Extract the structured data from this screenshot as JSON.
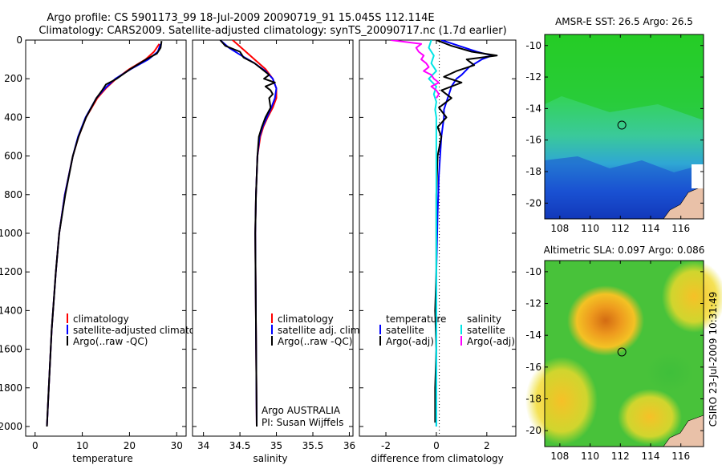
{
  "figure": {
    "title_line1": "Argo profile: CS 5901173_99 18-Jul-2009 20090719_91 15.045S 112.114E",
    "title_line2": "Climatology: CARS2009. Satellite-adjusted climatology: synTS_20090717.nc (1.7d earlier)",
    "side_caption": "CSIRO 23-Jul-2009 10:31:49"
  },
  "chart_data": [
    {
      "type": "line",
      "id": "temperature",
      "xlabel": "temperature",
      "ylabel": "",
      "xlim": [
        -2,
        32
      ],
      "ylim": [
        2050,
        0
      ],
      "xticks": [
        0,
        10,
        20,
        30
      ],
      "yticks": [
        0,
        200,
        400,
        600,
        800,
        1000,
        1200,
        1400,
        1600,
        1800,
        2000
      ],
      "legend": [
        "climatology",
        "satellite-adjusted climatology",
        "Argo(..raw -QC)"
      ],
      "series": [
        {
          "name": "climatology",
          "color": "#ff0000",
          "depth": [
            20,
            60,
            100,
            150,
            200,
            250,
            300,
            400,
            500,
            600,
            800,
            1000,
            1200,
            1500,
            1800,
            2000
          ],
          "values": [
            26.3,
            25.2,
            23.4,
            20.0,
            17.2,
            15.0,
            13.2,
            10.8,
            9.2,
            8.0,
            6.3,
            5.1,
            4.4,
            3.5,
            2.9,
            2.5
          ]
        },
        {
          "name": "satellite-adjusted climatology",
          "color": "#0000ff",
          "depth": [
            20,
            60,
            100,
            150,
            200,
            250,
            300,
            400,
            500,
            600,
            800,
            1000,
            1200,
            1500,
            1800,
            2000
          ],
          "values": [
            26.6,
            26.0,
            24.0,
            20.3,
            17.0,
            14.8,
            13.0,
            10.7,
            9.1,
            8.0,
            6.3,
            5.1,
            4.4,
            3.5,
            2.9,
            2.5
          ]
        },
        {
          "name": "Argo(..raw -QC)",
          "color": "#000000",
          "depth": [
            5,
            40,
            70,
            100,
            150,
            200,
            230,
            260,
            300,
            400,
            500,
            600,
            800,
            1000,
            1200,
            1500,
            1800,
            2000
          ],
          "values": [
            26.8,
            26.6,
            25.8,
            23.5,
            20.2,
            17.3,
            15.0,
            14.2,
            13.0,
            10.8,
            9.2,
            8.0,
            6.4,
            5.1,
            4.4,
            3.5,
            2.9,
            2.5
          ]
        }
      ]
    },
    {
      "type": "line",
      "id": "salinity",
      "xlabel": "salinity",
      "xlim": [
        33.85,
        36.05
      ],
      "ylim": [
        2050,
        0
      ],
      "xticks": [
        34,
        34.5,
        35,
        35.5,
        36
      ],
      "legend": [
        "climatology",
        "satellite adj. clim.",
        "Argo(..raw -QC)"
      ],
      "annotation": [
        "Argo AUSTRALIA",
        "PI: Susan Wijffels"
      ],
      "series": [
        {
          "name": "climatology",
          "color": "#ff0000",
          "depth": [
            0,
            50,
            100,
            150,
            200,
            250,
            300,
            350,
            400,
            450,
            500,
            600,
            800,
            1000,
            1500,
            2000
          ],
          "values": [
            34.4,
            34.55,
            34.7,
            34.85,
            34.95,
            35.0,
            35.0,
            34.95,
            34.88,
            34.82,
            34.78,
            34.74,
            34.72,
            34.71,
            34.72,
            34.73
          ]
        },
        {
          "name": "satellite adj. clim.",
          "color": "#0000ff",
          "depth": [
            0,
            40,
            80,
            120,
            160,
            200,
            250,
            300,
            350,
            400,
            450,
            500,
            600,
            800,
            1000,
            1500,
            2000
          ],
          "values": [
            34.23,
            34.35,
            34.52,
            34.7,
            34.85,
            34.95,
            35.0,
            34.98,
            34.93,
            34.87,
            34.81,
            34.77,
            34.74,
            34.72,
            34.71,
            34.72,
            34.73
          ]
        },
        {
          "name": "Argo(..raw -QC)",
          "color": "#000000",
          "depth": [
            0,
            30,
            60,
            90,
            120,
            150,
            180,
            200,
            220,
            240,
            260,
            280,
            300,
            350,
            400,
            450,
            500,
            600,
            800,
            1000,
            1500,
            2000
          ],
          "values": [
            34.23,
            34.3,
            34.5,
            34.55,
            34.7,
            34.8,
            34.9,
            34.83,
            34.98,
            34.85,
            34.92,
            34.95,
            34.9,
            34.92,
            34.85,
            34.8,
            34.76,
            34.74,
            34.72,
            34.71,
            34.72,
            34.73
          ]
        }
      ]
    },
    {
      "type": "line",
      "id": "difference",
      "xlabel": "difference from climatology",
      "xlim": [
        -3.05,
        3.15
      ],
      "ylim": [
        2050,
        0
      ],
      "xticks": [
        -2,
        0,
        2
      ],
      "legend_left_title": "temperature",
      "legend_right_title": "salinity",
      "legend_left": [
        "satellite",
        "Argo(-adj)"
      ],
      "legend_right": [
        "satellite",
        "Argo(-adj)"
      ],
      "series": [
        {
          "name": "temperature satellite",
          "color": "#0000ff",
          "depth": [
            0,
            30,
            60,
            80,
            100,
            140,
            180,
            200,
            240,
            280,
            320,
            360,
            400,
            450,
            500,
            700,
            900,
            1200,
            1500,
            1800,
            2000
          ],
          "values": [
            0.2,
            0.9,
            1.6,
            2.2,
            1.8,
            1.3,
            1.0,
            0.8,
            0.6,
            0.5,
            0.4,
            0.3,
            0.3,
            0.25,
            0.2,
            0.1,
            0.05,
            0.0,
            0.0,
            0.0,
            0.0
          ]
        },
        {
          "name": "temperature Argo(-adj)",
          "color": "#000000",
          "depth": [
            0,
            30,
            60,
            80,
            100,
            130,
            160,
            190,
            220,
            260,
            300,
            350,
            400,
            450,
            500,
            600,
            800,
            1000,
            1200,
            1400,
            1600,
            1800,
            1980
          ],
          "values": [
            0.0,
            0.6,
            1.4,
            2.4,
            1.2,
            1.5,
            0.8,
            0.3,
            1.0,
            0.2,
            0.6,
            0.1,
            0.4,
            0.05,
            0.2,
            0.05,
            0.0,
            0.0,
            0.0,
            -0.05,
            0.0,
            -0.05,
            -0.05
          ]
        },
        {
          "name": "salinity satellite",
          "color": "#00e5e5",
          "depth": [
            0,
            40,
            80,
            120,
            160,
            200,
            240,
            280,
            320,
            360,
            400,
            500,
            600,
            800,
            1000,
            1500,
            2000
          ],
          "values": [
            -0.2,
            -0.3,
            -0.1,
            -0.2,
            0.0,
            -0.3,
            0.0,
            -0.1,
            0.0,
            -0.05,
            0.0,
            0.0,
            0.0,
            0.0,
            0.0,
            0.0,
            0.0
          ]
        },
        {
          "name": "salinity Argo(-adj)",
          "color": "#ff00ff",
          "depth": [
            0,
            20,
            40,
            60,
            80,
            100,
            120,
            140,
            160,
            180,
            200,
            220,
            240,
            260,
            280,
            300
          ],
          "values": [
            -1.8,
            -0.6,
            -0.8,
            -0.7,
            -0.5,
            -0.6,
            -0.4,
            -0.3,
            -0.5,
            -0.2,
            -0.1,
            0.1,
            -0.2,
            0.0,
            0.1,
            0.0
          ]
        }
      ]
    },
    {
      "type": "heatmap",
      "id": "sst-map",
      "title": "AMSR-E SST: 26.5 Argo: 26.5",
      "xlim": [
        107,
        117.5
      ],
      "ylim": [
        -21,
        -9.3
      ],
      "xticks": [
        108,
        110,
        112,
        114,
        116
      ],
      "yticks": [
        -10,
        -12,
        -14,
        -16,
        -18,
        -20
      ],
      "marker_lon": 112.1,
      "marker_lat": -15.05
    },
    {
      "type": "heatmap",
      "id": "sla-map",
      "title": "Altimetric SLA: 0.097 Argo: 0.086",
      "xlim": [
        107,
        117.5
      ],
      "ylim": [
        -21,
        -9.3
      ],
      "xticks": [
        108,
        110,
        112,
        114,
        116
      ],
      "yticks": [
        -10,
        -12,
        -14,
        -16,
        -18,
        -20
      ],
      "marker_lon": 112.1,
      "marker_lat": -15.05
    }
  ]
}
